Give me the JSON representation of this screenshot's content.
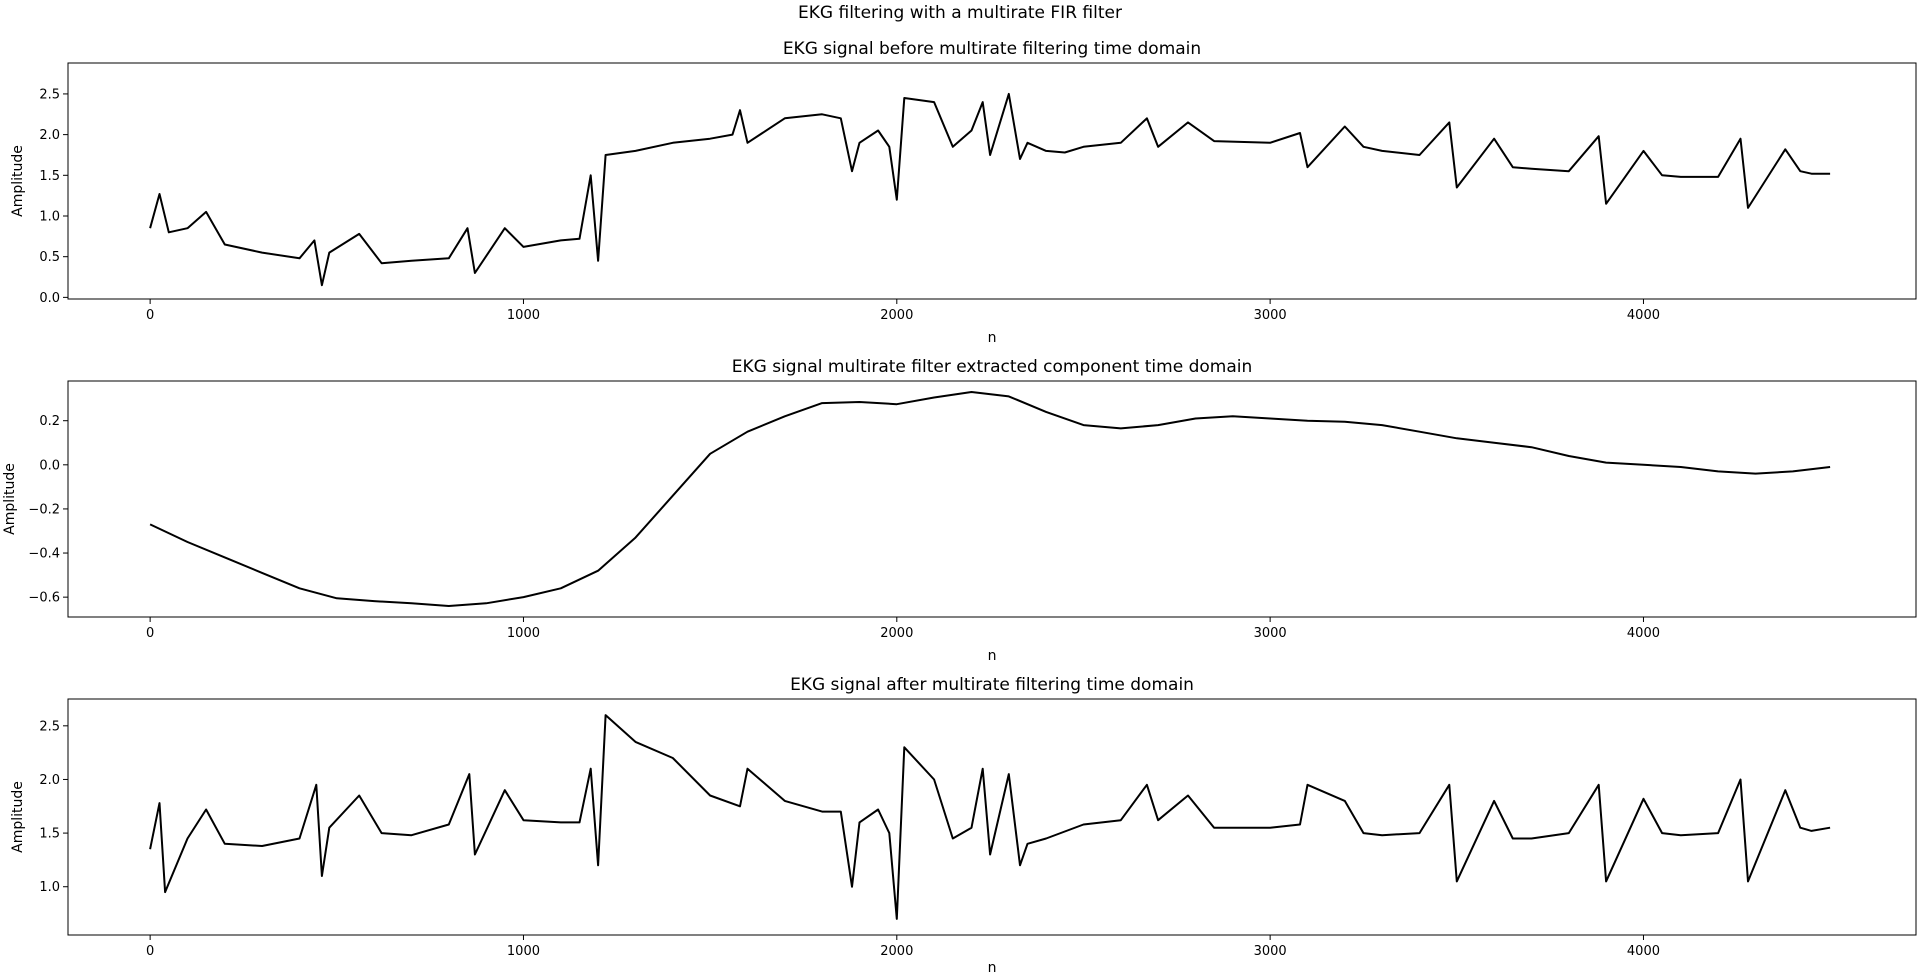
{
  "figure": {
    "suptitle": "EKG filtering with a multirate FIR filter",
    "line_color": "#000000"
  },
  "chart_data": [
    {
      "type": "line",
      "title": "EKG signal before multirate filtering time domain",
      "xlabel": "n",
      "ylabel": "Amplitude",
      "xlim": [
        -220,
        4730
      ],
      "ylim": [
        -0.02,
        2.88
      ],
      "xticks": [
        0,
        1000,
        2000,
        3000,
        4000
      ],
      "yticks": [
        0.0,
        0.5,
        1.0,
        1.5,
        2.0,
        2.5
      ],
      "ytick_decimals": 1,
      "series": [
        {
          "x": [
            0,
            25,
            50,
            100,
            150,
            200,
            300,
            400,
            440,
            460,
            480,
            560,
            620,
            700,
            800,
            850,
            870,
            950,
            1000,
            1100,
            1150,
            1180,
            1200,
            1220,
            1300,
            1400,
            1500,
            1560,
            1580,
            1600,
            1700,
            1800,
            1850,
            1880,
            1900,
            1950,
            1980,
            2000,
            2020,
            2100,
            2150,
            2200,
            2230,
            2250,
            2300,
            2330,
            2350,
            2400,
            2450,
            2500,
            2600,
            2670,
            2700,
            2780,
            2850,
            3000,
            3080,
            3100,
            3200,
            3250,
            3300,
            3400,
            3480,
            3500,
            3600,
            3650,
            3700,
            3800,
            3880,
            3900,
            4000,
            4050,
            4100,
            4200,
            4260,
            4280,
            4380,
            4420,
            4450,
            4500
          ],
          "y": [
            0.85,
            1.27,
            0.8,
            0.85,
            1.05,
            0.65,
            0.55,
            0.48,
            0.7,
            0.15,
            0.55,
            0.78,
            0.42,
            0.45,
            0.48,
            0.85,
            0.3,
            0.85,
            0.62,
            0.7,
            0.72,
            1.5,
            0.45,
            1.75,
            1.8,
            1.9,
            1.95,
            2.0,
            2.3,
            1.9,
            2.2,
            2.25,
            2.2,
            1.55,
            1.9,
            2.05,
            1.85,
            1.2,
            2.45,
            2.4,
            1.85,
            2.05,
            2.4,
            1.75,
            2.5,
            1.7,
            1.9,
            1.8,
            1.78,
            1.85,
            1.9,
            2.2,
            1.85,
            2.15,
            1.92,
            1.9,
            2.02,
            1.6,
            2.1,
            1.85,
            1.8,
            1.75,
            2.15,
            1.35,
            1.95,
            1.6,
            1.58,
            1.55,
            1.98,
            1.15,
            1.8,
            1.5,
            1.48,
            1.48,
            1.95,
            1.1,
            1.82,
            1.55,
            1.52,
            1.52
          ]
        }
      ]
    },
    {
      "type": "line",
      "title": "EKG signal multirate filter extracted component time domain",
      "xlabel": "n",
      "ylabel": "Amplitude",
      "xlim": [
        -220,
        4730
      ],
      "ylim": [
        -0.69,
        0.38
      ],
      "xticks": [
        0,
        1000,
        2000,
        3000,
        4000
      ],
      "yticks": [
        -0.6,
        -0.4,
        -0.2,
        0.0,
        0.2
      ],
      "ytick_decimals": 1,
      "series": [
        {
          "x": [
            0,
            100,
            200,
            300,
            400,
            500,
            600,
            700,
            800,
            900,
            1000,
            1100,
            1200,
            1300,
            1400,
            1500,
            1600,
            1700,
            1800,
            1900,
            2000,
            2100,
            2200,
            2300,
            2400,
            2500,
            2600,
            2700,
            2800,
            2900,
            3000,
            3100,
            3200,
            3300,
            3400,
            3500,
            3600,
            3700,
            3800,
            3900,
            4000,
            4100,
            4200,
            4300,
            4400,
            4500
          ],
          "y": [
            -0.27,
            -0.35,
            -0.42,
            -0.49,
            -0.56,
            -0.605,
            -0.618,
            -0.628,
            -0.64,
            -0.628,
            -0.6,
            -0.56,
            -0.48,
            -0.33,
            -0.14,
            0.05,
            0.15,
            0.22,
            0.28,
            0.285,
            0.275,
            0.305,
            0.33,
            0.31,
            0.24,
            0.18,
            0.165,
            0.18,
            0.21,
            0.22,
            0.21,
            0.2,
            0.195,
            0.18,
            0.15,
            0.12,
            0.1,
            0.08,
            0.04,
            0.01,
            0.0,
            -0.01,
            -0.03,
            -0.04,
            -0.03,
            -0.01
          ]
        }
      ]
    },
    {
      "type": "line",
      "title": "EKG signal after multirate filtering time domain",
      "xlabel": "n",
      "ylabel": "Amplitude",
      "xlim": [
        -220,
        4730
      ],
      "ylim": [
        0.55,
        2.75
      ],
      "xticks": [
        0,
        1000,
        2000,
        3000,
        4000
      ],
      "yticks": [
        1.0,
        1.5,
        2.0,
        2.5
      ],
      "ytick_decimals": 1,
      "series": [
        {
          "x": [
            0,
            25,
            40,
            100,
            150,
            200,
            300,
            400,
            445,
            460,
            480,
            560,
            620,
            700,
            800,
            855,
            870,
            950,
            1000,
            1100,
            1150,
            1180,
            1200,
            1220,
            1300,
            1400,
            1500,
            1580,
            1600,
            1700,
            1800,
            1850,
            1880,
            1900,
            1950,
            1980,
            2000,
            2020,
            2100,
            2150,
            2200,
            2230,
            2250,
            2300,
            2330,
            2350,
            2400,
            2500,
            2600,
            2670,
            2700,
            2780,
            2850,
            3000,
            3080,
            3100,
            3200,
            3250,
            3300,
            3400,
            3480,
            3500,
            3600,
            3650,
            3700,
            3800,
            3880,
            3900,
            4000,
            4050,
            4100,
            4200,
            4260,
            4280,
            4380,
            4420,
            4450,
            4500
          ],
          "y": [
            1.35,
            1.78,
            0.95,
            1.45,
            1.72,
            1.4,
            1.38,
            1.45,
            1.95,
            1.1,
            1.55,
            1.85,
            1.5,
            1.48,
            1.58,
            2.05,
            1.3,
            1.9,
            1.62,
            1.6,
            1.6,
            2.1,
            1.2,
            2.6,
            2.35,
            2.2,
            1.85,
            1.75,
            2.1,
            1.8,
            1.7,
            1.7,
            1.0,
            1.6,
            1.72,
            1.5,
            0.7,
            2.3,
            2.0,
            1.45,
            1.55,
            2.1,
            1.3,
            2.05,
            1.2,
            1.4,
            1.45,
            1.58,
            1.62,
            1.95,
            1.62,
            1.85,
            1.55,
            1.55,
            1.58,
            1.95,
            1.8,
            1.5,
            1.48,
            1.5,
            1.95,
            1.05,
            1.8,
            1.45,
            1.45,
            1.5,
            1.95,
            1.05,
            1.82,
            1.5,
            1.48,
            1.5,
            2.0,
            1.05,
            1.9,
            1.55,
            1.52,
            1.55
          ]
        }
      ]
    }
  ]
}
